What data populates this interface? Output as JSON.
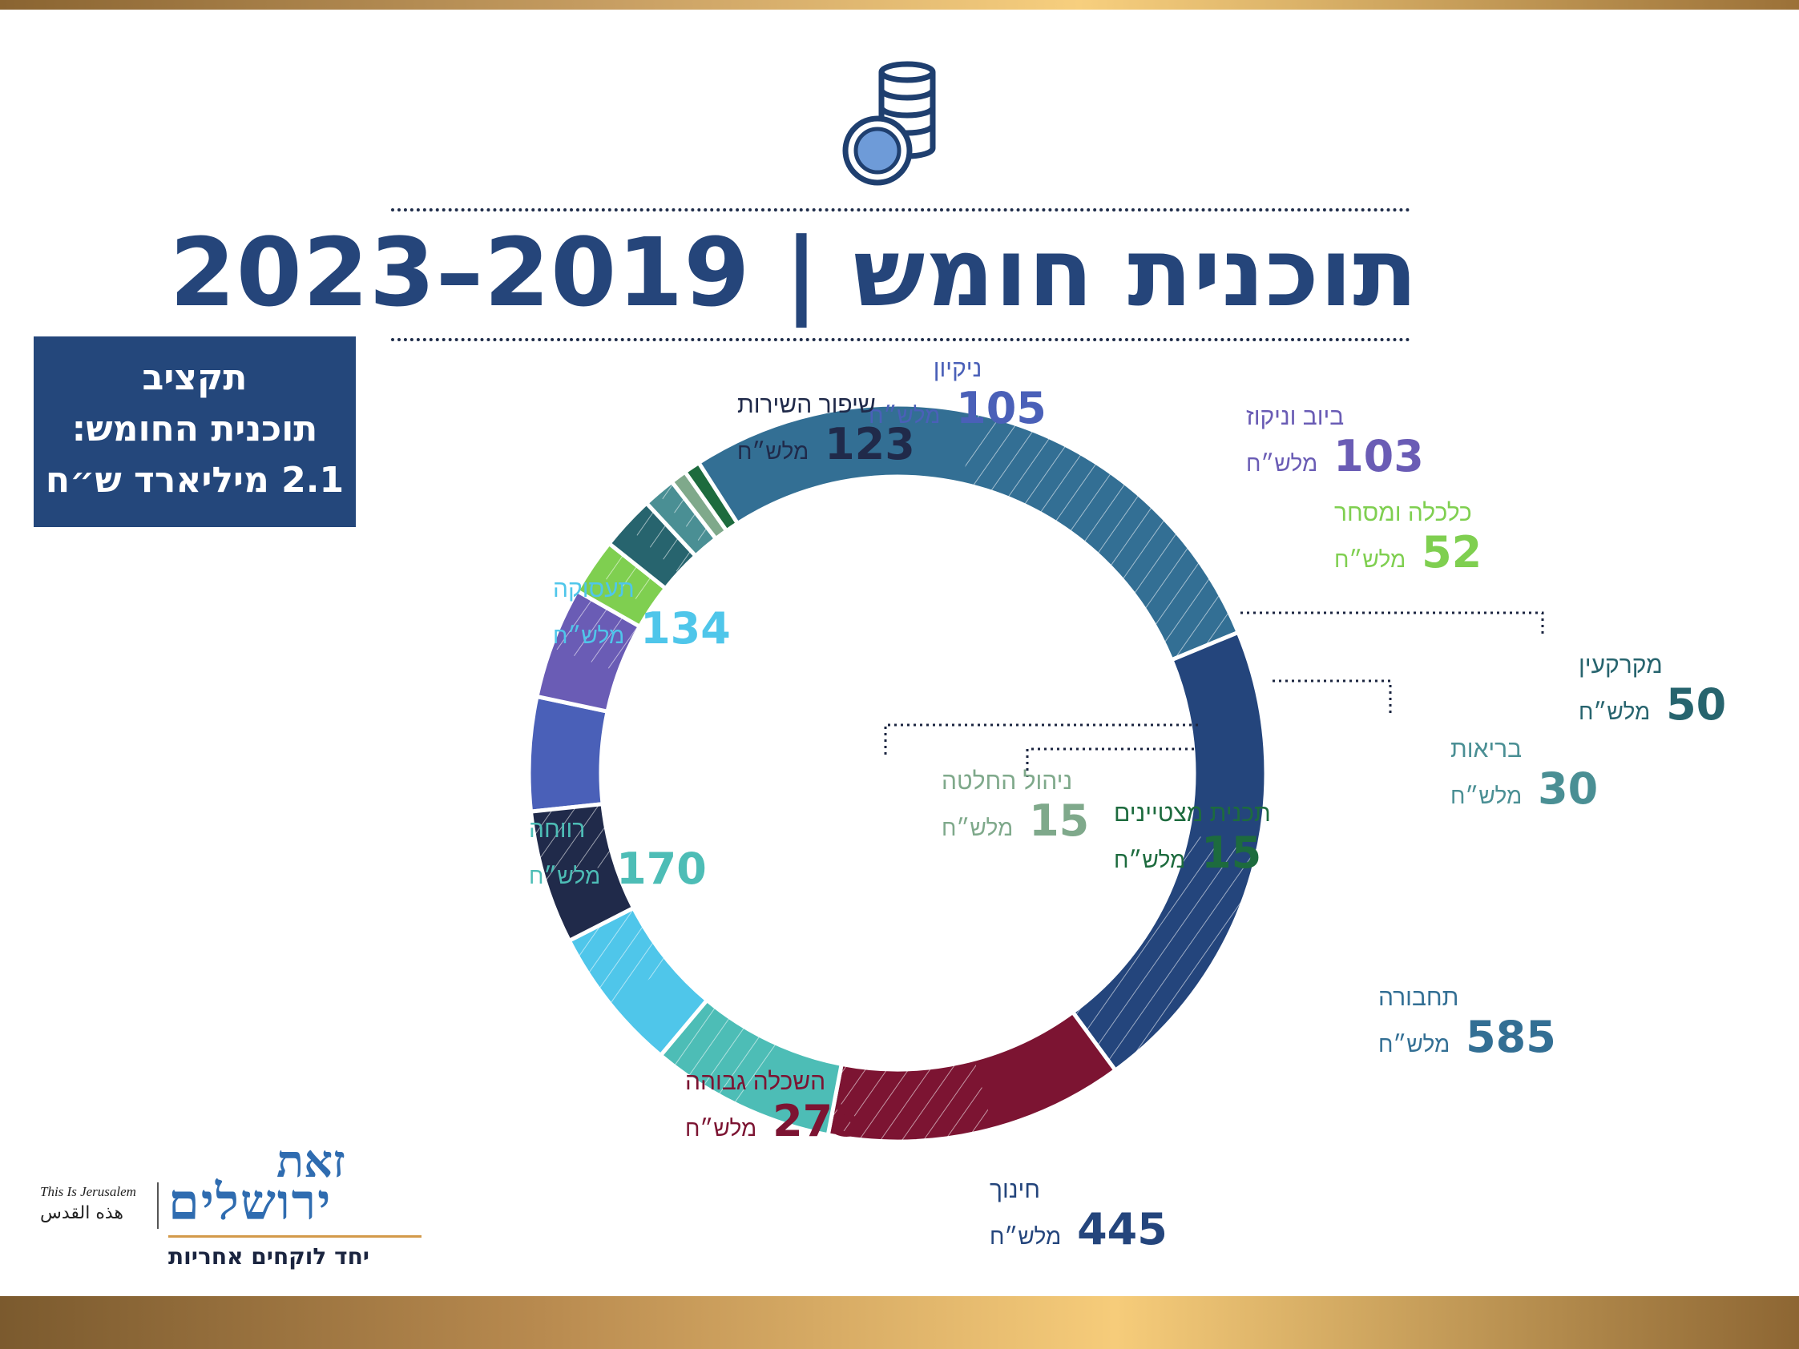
{
  "title": "תוכנית חומש | 2019–2023",
  "budget_box": {
    "line1": "תקציב",
    "line2": "תוכנית החומש:",
    "line3": "2.1 מיליארד ש״ח"
  },
  "unit_label": "מלש״ח",
  "colors": {
    "title": "#25457a",
    "budget_box": "#24477b",
    "gold": "#c9a064"
  },
  "icons": {
    "top": "coins-stack-icon"
  },
  "chart_data": {
    "type": "donut",
    "unit": "מלש״ח",
    "slices": [
      {
        "label": "ניקיון",
        "value": 105,
        "color": "#4a60b8",
        "hatched": false
      },
      {
        "label": "ביוב וניקוז",
        "value": 103,
        "color": "#6a5cb5",
        "hatched": true
      },
      {
        "label": "כלכלה ומסחר",
        "value": 52,
        "color": "#7fcf50",
        "hatched": true
      },
      {
        "label": "מקרקעין",
        "value": 50,
        "color": "#27646e",
        "hatched": true
      },
      {
        "label": "בריאות",
        "value": 30,
        "color": "#4a8f94",
        "hatched": true
      },
      {
        "label": "ניהול החלטה",
        "value": 15,
        "color": "#7fa98b",
        "hatched": false
      },
      {
        "label": "תכנית מצטיינים",
        "value": 15,
        "color": "#1d6b3e",
        "hatched": false
      },
      {
        "label": "תחבורה",
        "value": 585,
        "color": "#336f94",
        "hatched": true
      },
      {
        "label": "חינוך",
        "value": 445,
        "color": "#24457c",
        "hatched": true
      },
      {
        "label": "השכלה גבוהה",
        "value": 275,
        "color": "#7c1432",
        "hatched": true
      },
      {
        "label": "רווחה",
        "value": 170,
        "color": "#4dbdb6",
        "hatched": true
      },
      {
        "label": "תעסוקה",
        "value": 134,
        "color": "#4fc6ea",
        "hatched": true
      },
      {
        "label": "שיפור השירות",
        "value": 123,
        "color": "#202a4a",
        "hatched": true
      }
    ]
  },
  "logo": {
    "hebrew_line1": "זאת",
    "hebrew_line2": "ירושלים",
    "english": "This Is Jerusalem",
    "arabic": "هذه القدس",
    "tagline": "יחד לוקחים אחריות"
  }
}
